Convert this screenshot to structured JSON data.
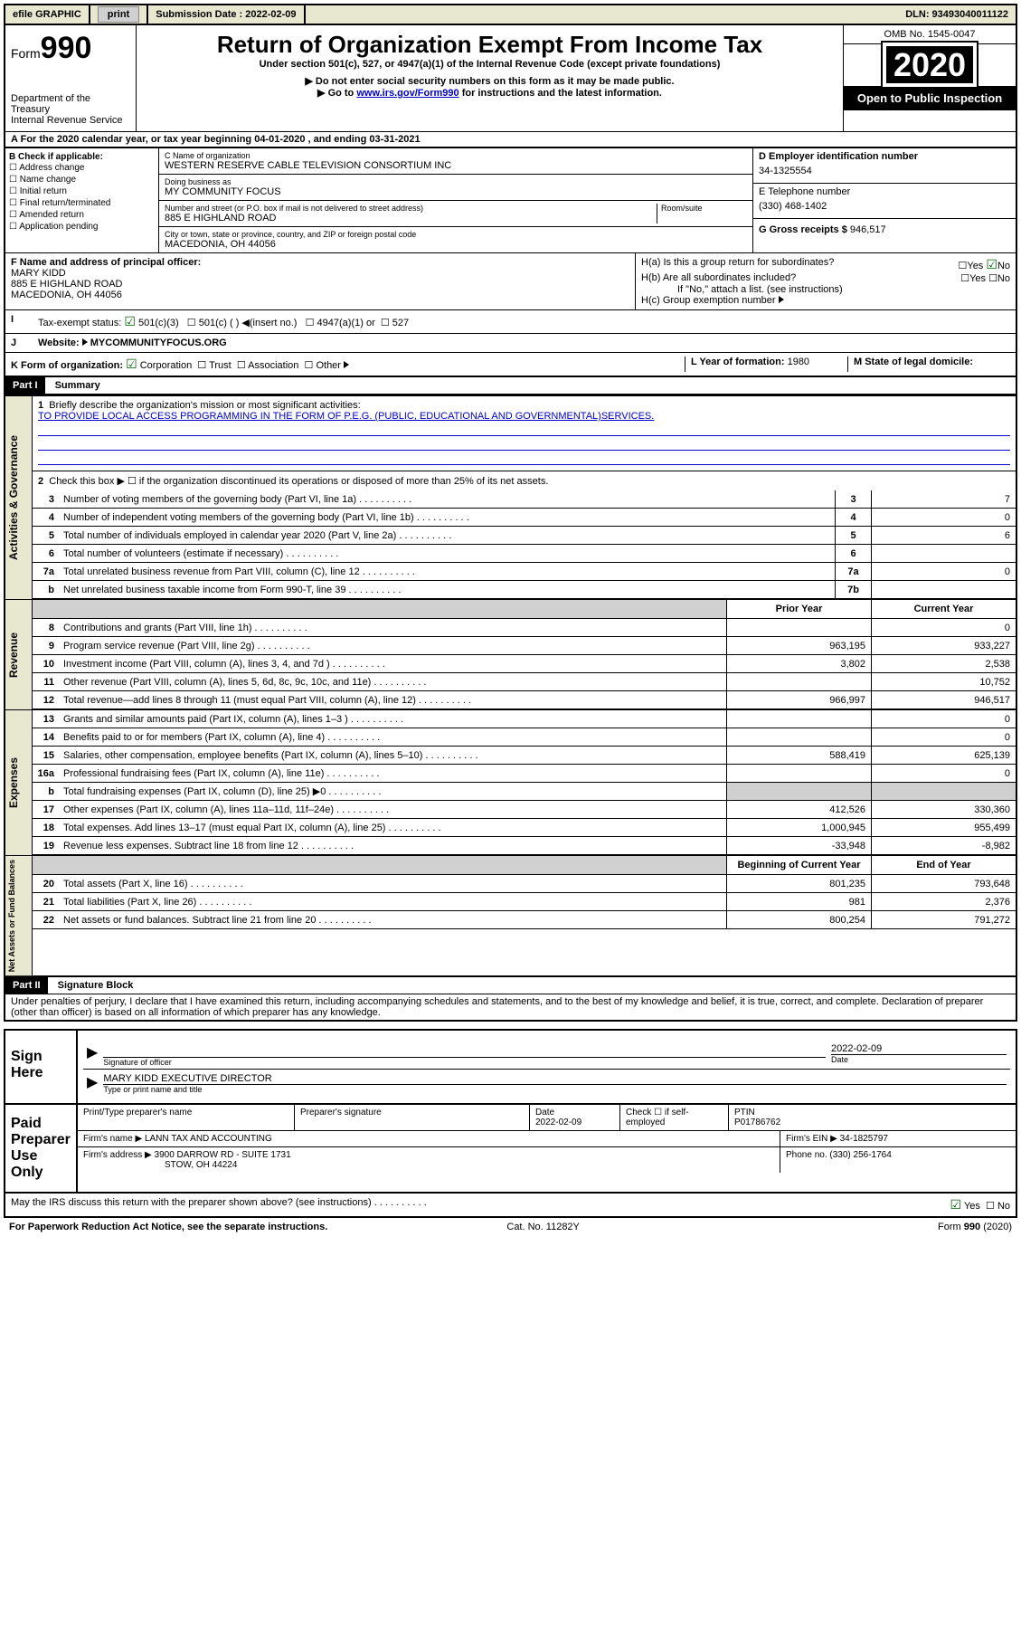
{
  "topbar": {
    "efile": "efile GRAPHIC",
    "print": "print",
    "subdate_label": "Submission Date : 2022-02-09",
    "dln": "DLN: 93493040011122"
  },
  "header": {
    "form_label": "Form",
    "form_num": "990",
    "dept": "Department of the Treasury",
    "irs": "Internal Revenue Service",
    "title": "Return of Organization Exempt From Income Tax",
    "sub1": "Under section 501(c), 527, or 4947(a)(1) of the Internal Revenue Code (except private foundations)",
    "sub2": "Do not enter social security numbers on this form as it may be made public.",
    "sub3_pre": "Go to ",
    "sub3_link": "www.irs.gov/Form990",
    "sub3_post": " for instructions and the latest information.",
    "omb": "OMB No. 1545-0047",
    "year": "2020",
    "inspect": "Open to Public Inspection"
  },
  "rowA": {
    "text": "For the 2020 calendar year, or tax year beginning 04-01-2020    , and ending 03-31-2021"
  },
  "boxB": {
    "label": "B Check if applicable:",
    "opts": [
      "Address change",
      "Name change",
      "Initial return",
      "Final return/terminated",
      "Amended return",
      "Application pending"
    ]
  },
  "boxC": {
    "name_label": "C Name of organization",
    "name": "WESTERN RESERVE CABLE TELEVISION CONSORTIUM INC",
    "dba_label": "Doing business as",
    "dba": "MY COMMUNITY FOCUS",
    "addr_label": "Number and street (or P.O. box if mail is not delivered to street address)",
    "room_label": "Room/suite",
    "addr": "885 E HIGHLAND ROAD",
    "city_label": "City or town, state or province, country, and ZIP or foreign postal code",
    "city": "MACEDONIA, OH  44056"
  },
  "boxD": {
    "label": "D Employer identification number",
    "val": "34-1325554"
  },
  "boxE": {
    "label": "E Telephone number",
    "val": "(330) 468-1402"
  },
  "boxG": {
    "label": "G Gross receipts $",
    "val": "946,517"
  },
  "boxF": {
    "label": "F  Name and address of principal officer:",
    "name": "MARY KIDD",
    "addr1": "885 E HIGHLAND ROAD",
    "addr2": "MACEDONIA, OH  44056"
  },
  "boxH": {
    "a": "H(a)  Is this a group return for subordinates?",
    "b": "H(b)  Are all subordinates included?",
    "b_note": "If \"No,\" attach a list. (see instructions)",
    "c": "H(c)  Group exemption number"
  },
  "taxI": {
    "label": "Tax-exempt status:",
    "opts": [
      "501(c)(3)",
      "501(c) (  )",
      "(insert no.)",
      "4947(a)(1) or",
      "527"
    ]
  },
  "rowJ": {
    "label": "Website:",
    "val": " MYCOMMUNITYFOCUS.ORG"
  },
  "rowK": {
    "label": "K Form of organization:",
    "opts": [
      "Corporation",
      "Trust",
      "Association",
      "Other"
    ],
    "l_label": "L Year of formation:",
    "l_val": "1980",
    "m_label": "M State of legal domicile:",
    "m_val": ""
  },
  "part1": {
    "hdr": "Part I",
    "title": "Summary",
    "line1_label": "Briefly describe the organization's mission or most significant activities:",
    "line1_val": "TO PROVIDE LOCAL ACCESS PROGRAMMING IN THE FORM OF P.E.G. (PUBLIC, EDUCATIONAL AND GOVERNMENTAL)SERVICES.",
    "line2": "Check this box ▶ ☐  if the organization discontinued its operations or disposed of more than 25% of its net assets.",
    "vert1": "Activities & Governance",
    "vert2": "Revenue",
    "vert3": "Expenses",
    "vert4": "Net Assets or Fund Balances",
    "lines_gov": [
      {
        "n": "3",
        "t": "Number of voting members of the governing body (Part VI, line 1a)",
        "b": "3",
        "v": "7"
      },
      {
        "n": "4",
        "t": "Number of independent voting members of the governing body (Part VI, line 1b)",
        "b": "4",
        "v": "0"
      },
      {
        "n": "5",
        "t": "Total number of individuals employed in calendar year 2020 (Part V, line 2a)",
        "b": "5",
        "v": "6"
      },
      {
        "n": "6",
        "t": "Total number of volunteers (estimate if necessary)",
        "b": "6",
        "v": ""
      },
      {
        "n": "7a",
        "t": "Total unrelated business revenue from Part VIII, column (C), line 12",
        "b": "7a",
        "v": "0"
      },
      {
        "n": "b",
        "t": "Net unrelated business taxable income from Form 990-T, line 39",
        "b": "7b",
        "v": ""
      }
    ],
    "col_prior": "Prior Year",
    "col_curr": "Current Year",
    "col_beg": "Beginning of Current Year",
    "col_end": "End of Year",
    "lines_rev": [
      {
        "n": "8",
        "t": "Contributions and grants (Part VIII, line 1h)",
        "p": "",
        "c": "0"
      },
      {
        "n": "9",
        "t": "Program service revenue (Part VIII, line 2g)",
        "p": "963,195",
        "c": "933,227"
      },
      {
        "n": "10",
        "t": "Investment income (Part VIII, column (A), lines 3, 4, and 7d )",
        "p": "3,802",
        "c": "2,538"
      },
      {
        "n": "11",
        "t": "Other revenue (Part VIII, column (A), lines 5, 6d, 8c, 9c, 10c, and 11e)",
        "p": "",
        "c": "10,752"
      },
      {
        "n": "12",
        "t": "Total revenue—add lines 8 through 11 (must equal Part VIII, column (A), line 12)",
        "p": "966,997",
        "c": "946,517"
      }
    ],
    "lines_exp": [
      {
        "n": "13",
        "t": "Grants and similar amounts paid (Part IX, column (A), lines 1–3 )",
        "p": "",
        "c": "0"
      },
      {
        "n": "14",
        "t": "Benefits paid to or for members (Part IX, column (A), line 4)",
        "p": "",
        "c": "0"
      },
      {
        "n": "15",
        "t": "Salaries, other compensation, employee benefits (Part IX, column (A), lines 5–10)",
        "p": "588,419",
        "c": "625,139"
      },
      {
        "n": "16a",
        "t": "Professional fundraising fees (Part IX, column (A), line 11e)",
        "p": "",
        "c": "0"
      },
      {
        "n": "b",
        "t": "Total fundraising expenses (Part IX, column (D), line 25) ▶0",
        "p": "gray",
        "c": "gray"
      },
      {
        "n": "17",
        "t": "Other expenses (Part IX, column (A), lines 11a–11d, 11f–24e)",
        "p": "412,526",
        "c": "330,360"
      },
      {
        "n": "18",
        "t": "Total expenses. Add lines 13–17 (must equal Part IX, column (A), line 25)",
        "p": "1,000,945",
        "c": "955,499"
      },
      {
        "n": "19",
        "t": "Revenue less expenses. Subtract line 18 from line 12",
        "p": "-33,948",
        "c": "-8,982"
      }
    ],
    "lines_net": [
      {
        "n": "20",
        "t": "Total assets (Part X, line 16)",
        "p": "801,235",
        "c": "793,648"
      },
      {
        "n": "21",
        "t": "Total liabilities (Part X, line 26)",
        "p": "981",
        "c": "2,376"
      },
      {
        "n": "22",
        "t": "Net assets or fund balances. Subtract line 21 from line 20",
        "p": "800,254",
        "c": "791,272"
      }
    ]
  },
  "part2": {
    "hdr": "Part II",
    "title": "Signature Block",
    "decl": "Under penalties of perjury, I declare that I have examined this return, including accompanying schedules and statements, and to the best of my knowledge and belief, it is true, correct, and complete. Declaration of preparer (other than officer) is based on all information of which preparer has any knowledge."
  },
  "sign": {
    "label": "Sign Here",
    "sig_label": "Signature of officer",
    "date_label": "Date",
    "date": "2022-02-09",
    "name": "MARY KIDD  EXECUTIVE DIRECTOR",
    "name_label": "Type or print name and title"
  },
  "prep": {
    "label": "Paid Preparer Use Only",
    "c1": "Print/Type preparer's name",
    "c2": "Preparer's signature",
    "c3": "Date",
    "c3v": "2022-02-09",
    "c4": "Check ☐ if self-employed",
    "c5": "PTIN",
    "c5v": "P01786762",
    "firm_label": "Firm's name    ▶",
    "firm": "LANN TAX AND ACCOUNTING",
    "ein_label": "Firm's EIN ▶",
    "ein": "34-1825797",
    "addr_label": "Firm's address ▶",
    "addr1": "3900 DARROW RD - SUITE 1731",
    "addr2": "STOW, OH  44224",
    "phone_label": "Phone no.",
    "phone": "(330) 256-1764",
    "discuss": "May the IRS discuss this return with the preparer shown above? (see instructions)",
    "yes": "Yes",
    "no": "No"
  },
  "footer": {
    "left": "For Paperwork Reduction Act Notice, see the separate instructions.",
    "mid": "Cat. No. 11282Y",
    "right": "Form 990 (2020)"
  }
}
